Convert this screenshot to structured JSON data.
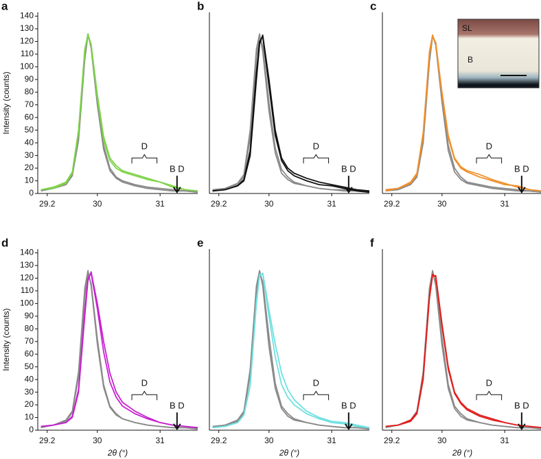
{
  "chart_data": [
    {
      "type": "line",
      "panel": "a",
      "ylabel": "Intensity (counts)",
      "x": [
        29.1,
        29.3,
        29.5,
        29.6,
        29.7,
        29.8,
        29.85,
        29.9,
        30.0,
        30.1,
        30.2,
        30.3,
        30.4,
        30.6,
        30.8,
        31.0,
        31.2,
        31.4,
        31.6
      ],
      "series": [
        {
          "color": "#8a8a8a",
          "values": [
            3,
            4,
            8,
            15,
            45,
            110,
            126,
            115,
            70,
            35,
            18,
            12,
            9,
            6,
            4,
            3,
            2,
            2,
            1
          ]
        },
        {
          "color": "#8a8a8a",
          "values": [
            2,
            4,
            7,
            14,
            42,
            106,
            125,
            117,
            74,
            38,
            20,
            13,
            10,
            7,
            5,
            4,
            3,
            2,
            2
          ]
        },
        {
          "color": "#7ed348",
          "values": [
            3,
            4,
            8,
            16,
            48,
            112,
            126,
            117,
            75,
            42,
            26,
            20,
            17,
            14,
            11,
            9,
            5,
            3,
            2
          ]
        },
        {
          "color": "#7ed348",
          "values": [
            3,
            5,
            9,
            17,
            50,
            114,
            125,
            118,
            78,
            45,
            28,
            22,
            18,
            15,
            12,
            9,
            6,
            3,
            2
          ]
        }
      ],
      "xlim": [
        29.05,
        31.6
      ],
      "xticks": [
        29.2,
        30,
        31
      ],
      "ylim": [
        0,
        143
      ],
      "yticks": [
        0,
        10,
        20,
        30,
        40,
        50,
        60,
        70,
        80,
        90,
        100,
        110,
        120,
        130,
        140
      ],
      "annotations": [
        "D",
        "B D"
      ]
    },
    {
      "type": "line",
      "panel": "b",
      "x": [
        29.1,
        29.3,
        29.5,
        29.6,
        29.7,
        29.8,
        29.85,
        29.9,
        30.0,
        30.1,
        30.2,
        30.3,
        30.4,
        30.6,
        30.8,
        31.0,
        31.2,
        31.4,
        31.6
      ],
      "series": [
        {
          "color": "#8a8a8a",
          "values": [
            3,
            4,
            8,
            15,
            50,
            114,
            126,
            112,
            65,
            32,
            16,
            11,
            8,
            6,
            4,
            3,
            2,
            2,
            1
          ]
        },
        {
          "color": "#8a8a8a",
          "values": [
            2,
            3,
            7,
            13,
            44,
            108,
            124,
            116,
            72,
            36,
            19,
            13,
            9,
            6,
            4,
            3,
            3,
            2,
            1
          ]
        },
        {
          "color": "#111111",
          "values": [
            2,
            3,
            6,
            10,
            30,
            90,
            118,
            125,
            90,
            50,
            28,
            20,
            16,
            12,
            9,
            7,
            5,
            3,
            2
          ]
        },
        {
          "color": "#111111",
          "values": [
            2,
            3,
            6,
            11,
            34,
            96,
            120,
            124,
            85,
            46,
            26,
            18,
            14,
            10,
            7,
            6,
            4,
            2,
            1
          ]
        }
      ],
      "xlim": [
        29.05,
        31.6
      ],
      "xticks": [
        29.2,
        30,
        31
      ],
      "ylim": [
        0,
        143
      ],
      "annotations": [
        "D",
        "B D"
      ]
    },
    {
      "type": "line",
      "panel": "c",
      "inset_labels": [
        "SL",
        "B"
      ],
      "x": [
        29.1,
        29.3,
        29.5,
        29.6,
        29.7,
        29.8,
        29.85,
        29.9,
        30.0,
        30.1,
        30.2,
        30.3,
        30.4,
        30.6,
        30.8,
        31.0,
        31.2,
        31.4,
        31.6
      ],
      "series": [
        {
          "color": "#8a8a8a",
          "values": [
            3,
            4,
            8,
            14,
            44,
            108,
            125,
            117,
            72,
            34,
            17,
            11,
            8,
            6,
            4,
            3,
            2,
            2,
            1
          ]
        },
        {
          "color": "#8a8a8a",
          "values": [
            2,
            3,
            7,
            13,
            40,
            104,
            124,
            119,
            76,
            38,
            20,
            13,
            9,
            7,
            5,
            4,
            3,
            2,
            1
          ]
        },
        {
          "color": "#f0902a",
          "values": [
            3,
            4,
            8,
            15,
            46,
            110,
            124,
            119,
            80,
            46,
            28,
            21,
            18,
            15,
            11,
            8,
            5,
            3,
            2
          ]
        },
        {
          "color": "#f0902a",
          "values": [
            2,
            4,
            9,
            16,
            48,
            112,
            125,
            118,
            78,
            44,
            27,
            20,
            17,
            13,
            10,
            7,
            6,
            3,
            2
          ]
        }
      ],
      "xlim": [
        29.05,
        31.6
      ],
      "xticks": [
        29.2,
        30,
        31
      ],
      "ylim": [
        0,
        143
      ],
      "annotations": [
        "D",
        "B D"
      ]
    },
    {
      "type": "line",
      "panel": "d",
      "ylabel": "Intensity (counts)",
      "xlabel": "2θ (°)",
      "x": [
        29.1,
        29.3,
        29.5,
        29.6,
        29.7,
        29.8,
        29.85,
        29.9,
        30.0,
        30.1,
        30.2,
        30.3,
        30.4,
        30.6,
        30.8,
        31.0,
        31.2,
        31.4,
        31.6
      ],
      "series": [
        {
          "color": "#8a8a8a",
          "values": [
            3,
            4,
            8,
            15,
            46,
            112,
            126,
            114,
            68,
            34,
            18,
            12,
            9,
            6,
            4,
            3,
            2,
            2,
            1
          ]
        },
        {
          "color": "#8a8a8a",
          "values": [
            2,
            4,
            7,
            14,
            42,
            106,
            124,
            116,
            72,
            36,
            19,
            13,
            9,
            6,
            4,
            3,
            2,
            2,
            1
          ]
        },
        {
          "color": "#c820d0",
          "values": [
            3,
            4,
            6,
            10,
            30,
            90,
            118,
            125,
            100,
            70,
            45,
            30,
            22,
            15,
            10,
            6,
            4,
            3,
            2
          ]
        },
        {
          "color": "#c820d0",
          "values": [
            3,
            4,
            6,
            11,
            32,
            94,
            120,
            124,
            96,
            62,
            38,
            26,
            19,
            13,
            9,
            6,
            4,
            3,
            2
          ]
        }
      ],
      "xlim": [
        29.05,
        31.6
      ],
      "xticks": [
        29.2,
        30,
        31
      ],
      "ylim": [
        0,
        143
      ],
      "yticks": [
        0,
        10,
        20,
        30,
        40,
        50,
        60,
        70,
        80,
        90,
        100,
        110,
        120,
        130,
        140
      ],
      "annotations": [
        "D",
        "B D"
      ]
    },
    {
      "type": "line",
      "panel": "e",
      "xlabel": "2θ (°)",
      "x": [
        29.1,
        29.3,
        29.5,
        29.6,
        29.7,
        29.8,
        29.85,
        29.9,
        30.0,
        30.1,
        30.2,
        30.3,
        30.4,
        30.6,
        30.8,
        31.0,
        31.2,
        31.4,
        31.6
      ],
      "series": [
        {
          "color": "#8a8a8a",
          "values": [
            3,
            4,
            8,
            15,
            48,
            114,
            126,
            114,
            66,
            33,
            17,
            11,
            8,
            6,
            4,
            3,
            2,
            2,
            1
          ]
        },
        {
          "color": "#8a8a8a",
          "values": [
            2,
            4,
            7,
            14,
            44,
            108,
            124,
            117,
            74,
            37,
            19,
            13,
            9,
            6,
            4,
            3,
            2,
            2,
            1
          ]
        },
        {
          "color": "#6fe0e0",
          "values": [
            2,
            3,
            6,
            12,
            35,
            100,
            122,
            124,
            95,
            68,
            45,
            32,
            24,
            15,
            10,
            7,
            6,
            4,
            2
          ]
        },
        {
          "color": "#6fe0e0",
          "values": [
            2,
            3,
            6,
            12,
            36,
            102,
            123,
            123,
            90,
            58,
            36,
            26,
            20,
            13,
            9,
            6,
            5,
            3,
            2
          ]
        }
      ],
      "xlim": [
        29.05,
        31.6
      ],
      "xticks": [
        29.2,
        30,
        31
      ],
      "ylim": [
        0,
        143
      ],
      "annotations": [
        "D",
        "B D"
      ]
    },
    {
      "type": "line",
      "panel": "f",
      "xlabel": "2θ (°)",
      "x": [
        29.1,
        29.3,
        29.5,
        29.6,
        29.7,
        29.8,
        29.85,
        29.9,
        30.0,
        30.1,
        30.2,
        30.3,
        30.4,
        30.6,
        30.8,
        31.0,
        31.2,
        31.4,
        31.6
      ],
      "series": [
        {
          "color": "#8a8a8a",
          "values": [
            3,
            4,
            8,
            15,
            46,
            112,
            126,
            114,
            67,
            33,
            17,
            11,
            8,
            6,
            4,
            3,
            2,
            2,
            1
          ]
        },
        {
          "color": "#8a8a8a",
          "values": [
            2,
            4,
            7,
            14,
            42,
            106,
            124,
            117,
            73,
            36,
            19,
            13,
            9,
            6,
            4,
            3,
            2,
            2,
            1
          ]
        },
        {
          "color": "#e0201f",
          "values": [
            3,
            4,
            7,
            13,
            40,
            104,
            122,
            122,
            84,
            50,
            30,
            22,
            17,
            12,
            9,
            6,
            4,
            3,
            2
          ]
        },
        {
          "color": "#e0201f",
          "values": [
            3,
            4,
            8,
            14,
            42,
            106,
            123,
            121,
            82,
            48,
            29,
            21,
            16,
            11,
            8,
            6,
            4,
            3,
            2
          ]
        }
      ],
      "xlim": [
        29.05,
        31.6
      ],
      "xticks": [
        29.2,
        30,
        31
      ],
      "ylim": [
        0,
        143
      ],
      "annotations": [
        "D",
        "B D"
      ]
    }
  ]
}
